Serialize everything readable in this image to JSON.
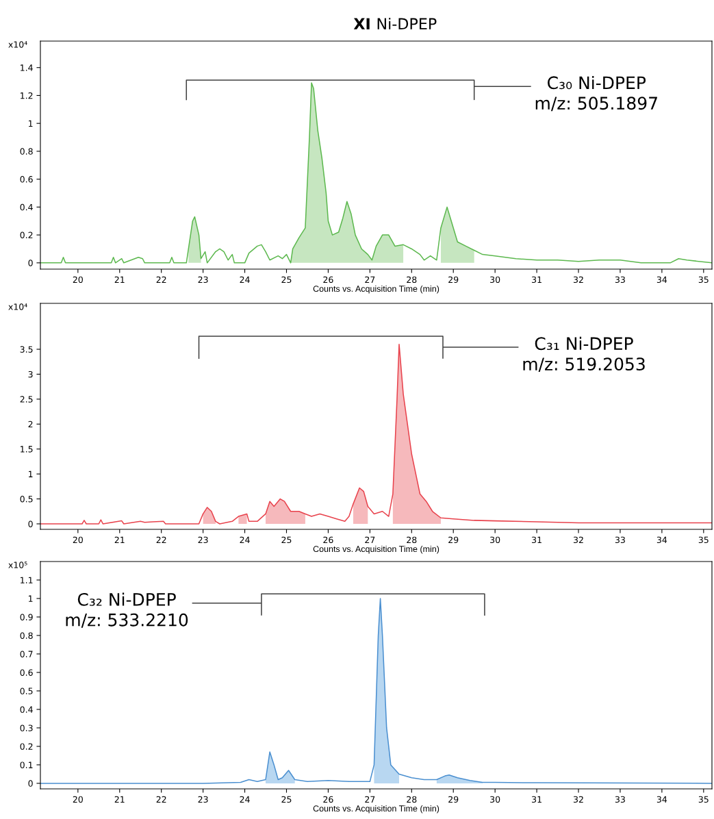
{
  "chart_data": [
    {
      "type": "line",
      "title": "XI Ni-DPEP",
      "xlabel": "Counts vs. Acquisition Time (min)",
      "ylabel": "x10⁴",
      "xlim": [
        19.1,
        35.2
      ],
      "xticks": [
        20,
        21,
        22,
        23,
        24,
        25,
        26,
        27,
        28,
        29,
        30,
        31,
        32,
        33,
        34,
        35
      ],
      "ylim": [
        -0.045,
        1.59
      ],
      "yticks": [
        0,
        0.2,
        0.4,
        0.6,
        0.8,
        1,
        1.2,
        1.4
      ],
      "marker": "none",
      "x": [
        19.1,
        19.6,
        19.65,
        19.7,
        20.8,
        20.85,
        20.9,
        21.05,
        21.1,
        21.45,
        21.55,
        21.6,
        22.2,
        22.25,
        22.3,
        22.6,
        22.65,
        22.75,
        22.8,
        22.9,
        22.95,
        23.05,
        23.1,
        23.3,
        23.4,
        23.5,
        23.6,
        23.7,
        23.75,
        24.0,
        24.1,
        24.3,
        24.4,
        24.5,
        24.6,
        24.8,
        24.9,
        25.0,
        25.1,
        25.15,
        25.3,
        25.45,
        25.55,
        25.6,
        25.65,
        25.75,
        25.85,
        25.95,
        26.0,
        26.1,
        26.25,
        26.35,
        26.45,
        26.55,
        26.65,
        26.8,
        26.95,
        27.05,
        27.15,
        27.3,
        27.45,
        27.6,
        27.8,
        28.0,
        28.2,
        28.3,
        28.45,
        28.6,
        28.7,
        28.85,
        28.95,
        29.1,
        29.3,
        29.5,
        29.7,
        30.0,
        30.5,
        31.0,
        31.5,
        32.0,
        32.5,
        33.0,
        33.5,
        34.2,
        34.4,
        34.6,
        35.2
      ],
      "series": [
        {
          "type": "area",
          "color": "#c6e6c0",
          "values": [
            null,
            null,
            null,
            null,
            null,
            null,
            null,
            null,
            null,
            null,
            null,
            null,
            null,
            null,
            null,
            null,
            0.1,
            0.3,
            0.33,
            0.2,
            0.03,
            null,
            null,
            null,
            null,
            null,
            null,
            null,
            null,
            null,
            null,
            null,
            null,
            null,
            null,
            null,
            null,
            null,
            0.0,
            0.1,
            0.18,
            0.25,
            0.9,
            1.29,
            1.25,
            0.95,
            0.75,
            0.5,
            0.3,
            0.2,
            0.22,
            0.32,
            0.44,
            0.35,
            0.2,
            0.1,
            0.06,
            0.02,
            0.12,
            0.2,
            0.2,
            0.12,
            0.13,
            null,
            null,
            null,
            null,
            null,
            0.25,
            0.4,
            0.3,
            0.15,
            0.12,
            0.09,
            null,
            null,
            null,
            null,
            null,
            null,
            null,
            null,
            null,
            null,
            null,
            null,
            null
          ]
        },
        {
          "color": "#5cb84e",
          "values": [
            0,
            0,
            0.04,
            0,
            0,
            0.04,
            0,
            0.03,
            0,
            0.04,
            0.03,
            0,
            0,
            0.04,
            0,
            0,
            0.1,
            0.3,
            0.33,
            0.2,
            0.03,
            0.08,
            0,
            0.08,
            0.1,
            0.08,
            0.02,
            0.06,
            0,
            0,
            0.07,
            0.12,
            0.13,
            0.08,
            0.02,
            0.05,
            0.03,
            0.06,
            0.0,
            0.1,
            0.18,
            0.25,
            0.9,
            1.29,
            1.25,
            0.95,
            0.75,
            0.5,
            0.3,
            0.2,
            0.22,
            0.32,
            0.44,
            0.35,
            0.2,
            0.1,
            0.06,
            0.02,
            0.12,
            0.2,
            0.2,
            0.12,
            0.13,
            0.1,
            0.06,
            0.02,
            0.05,
            0.02,
            0.25,
            0.4,
            0.3,
            0.15,
            0.12,
            0.09,
            0.06,
            0.05,
            0.03,
            0.02,
            0.02,
            0.01,
            0.02,
            0.02,
            0.0,
            0.0,
            0.03,
            0.02,
            0
          ]
        },
        {
          "color": "#404040",
          "x": [
            22.6,
            22.6,
            29.5,
            29.5,
            29.5,
            30.85
          ],
          "values": [
            1.17,
            1.31,
            1.31,
            1.17,
            1.265,
            1.265
          ]
        }
      ],
      "annotations": [
        "C₃₀ Ni-DPEP\nm/z: 505.1897"
      ]
    },
    {
      "type": "line",
      "xlabel": "Counts vs. Acquisition Time (min)",
      "ylabel": "x10⁴",
      "xlim": [
        19.1,
        35.2
      ],
      "xticks": [
        20,
        21,
        22,
        23,
        24,
        25,
        26,
        27,
        28,
        29,
        30,
        31,
        32,
        33,
        34,
        35
      ],
      "ylim": [
        -0.11,
        4.42
      ],
      "yticks": [
        0,
        0.5,
        1,
        1.5,
        2,
        2.5,
        3,
        3.5
      ],
      "marker": "none",
      "x": [
        19.1,
        20.1,
        20.15,
        20.2,
        20.5,
        20.55,
        20.6,
        21.05,
        21.1,
        21.5,
        21.6,
        21.8,
        22.05,
        22.1,
        22.9,
        23.0,
        23.1,
        23.2,
        23.3,
        23.4,
        23.7,
        23.85,
        24.05,
        24.1,
        24.3,
        24.5,
        24.6,
        24.7,
        24.85,
        24.95,
        25.1,
        25.3,
        25.45,
        25.6,
        25.8,
        26.0,
        26.2,
        26.4,
        26.5,
        26.6,
        26.75,
        26.85,
        26.95,
        27.1,
        27.3,
        27.45,
        27.55,
        27.65,
        27.7,
        27.8,
        27.9,
        28.0,
        28.1,
        28.2,
        28.35,
        28.5,
        28.7,
        29.0,
        29.5,
        30.0,
        31.0,
        32.0,
        33.0,
        34.0,
        35.2
      ],
      "series": [
        {
          "type": "area",
          "color": "#f6b9bc",
          "values": [
            null,
            null,
            null,
            null,
            null,
            null,
            null,
            null,
            null,
            null,
            null,
            null,
            null,
            null,
            null,
            0.2,
            0.33,
            0.25,
            0.05,
            null,
            null,
            0.15,
            0.2,
            null,
            null,
            0.2,
            0.45,
            0.35,
            0.5,
            0.45,
            0.25,
            0.25,
            0.2,
            null,
            null,
            null,
            null,
            null,
            null,
            0.4,
            0.72,
            0.65,
            0.35,
            null,
            null,
            null,
            0.6,
            2.5,
            3.6,
            2.6,
            2.0,
            1.4,
            1.0,
            0.6,
            0.45,
            0.25,
            0.12,
            null,
            null,
            null,
            null,
            null,
            null,
            null,
            null
          ]
        },
        {
          "color": "#e8424c",
          "values": [
            0,
            0,
            0.07,
            0,
            0,
            0.08,
            0,
            0.06,
            0,
            0.05,
            0.03,
            0.04,
            0.05,
            0,
            0,
            0.2,
            0.33,
            0.25,
            0.05,
            0,
            0.05,
            0.15,
            0.2,
            0.05,
            0.05,
            0.2,
            0.45,
            0.35,
            0.5,
            0.45,
            0.25,
            0.25,
            0.2,
            0.15,
            0.2,
            0.15,
            0.1,
            0.05,
            0.15,
            0.4,
            0.72,
            0.65,
            0.35,
            0.2,
            0.25,
            0.15,
            0.6,
            2.5,
            3.6,
            2.6,
            2.0,
            1.4,
            1.0,
            0.6,
            0.45,
            0.25,
            0.12,
            0.1,
            0.07,
            0.06,
            0.04,
            0.02,
            0.02,
            0.02,
            0.02
          ]
        },
        {
          "color": "#404040",
          "x": [
            22.9,
            22.9,
            28.75,
            28.75,
            28.75,
            30.55
          ],
          "values": [
            3.32,
            3.76,
            3.76,
            3.32,
            3.54,
            3.54
          ]
        }
      ],
      "annotations": [
        "C₃₁ Ni-DPEP\nm/z: 519.2053"
      ]
    },
    {
      "type": "line",
      "xlabel": "Counts vs. Acquisition Time (min)",
      "ylabel": "x10⁵",
      "xlim": [
        19.1,
        35.2
      ],
      "xticks": [
        20,
        21,
        22,
        23,
        24,
        25,
        26,
        27,
        28,
        29,
        30,
        31,
        32,
        33,
        34,
        35
      ],
      "ylim": [
        -0.03,
        1.2
      ],
      "yticks": [
        0,
        0.1,
        0.2,
        0.3,
        0.4,
        0.5,
        0.6,
        0.7,
        0.8,
        0.9,
        1,
        1.1
      ],
      "marker": "none",
      "x": [
        19.1,
        23.0,
        23.9,
        24.1,
        24.3,
        24.5,
        24.6,
        24.7,
        24.8,
        24.9,
        25.05,
        25.2,
        25.5,
        26.0,
        26.5,
        27.0,
        27.1,
        27.2,
        27.25,
        27.3,
        27.4,
        27.5,
        27.7,
        28.0,
        28.3,
        28.6,
        28.8,
        28.9,
        29.1,
        29.4,
        29.7,
        30.0,
        31.0,
        35.2
      ],
      "series": [
        {
          "type": "area",
          "color": "#b8d7f1",
          "values": [
            null,
            null,
            null,
            null,
            null,
            0.02,
            0.17,
            0.1,
            0.02,
            0.03,
            0.07,
            0.02,
            null,
            null,
            null,
            null,
            0.1,
            0.8,
            1.0,
            0.8,
            0.3,
            0.1,
            0.05,
            null,
            null,
            0.02,
            0.04,
            0.045,
            0.03,
            0.015,
            0.005,
            null,
            null,
            null
          ]
        },
        {
          "color": "#4a8fd0",
          "values": [
            0,
            0,
            0.005,
            0.02,
            0.01,
            0.02,
            0.17,
            0.1,
            0.02,
            0.03,
            0.07,
            0.02,
            0.01,
            0.015,
            0.01,
            0.01,
            0.1,
            0.8,
            1.0,
            0.8,
            0.3,
            0.1,
            0.05,
            0.03,
            0.02,
            0.02,
            0.04,
            0.045,
            0.03,
            0.015,
            0.005,
            0.005,
            0.003,
            0
          ]
        },
        {
          "color": "#404040",
          "x": [
            29.75,
            29.75,
            24.4,
            24.4,
            24.4,
            22.75
          ],
          "values": [
            0.91,
            1.025,
            1.025,
            0.91,
            0.975,
            0.975
          ]
        }
      ],
      "annotations": [
        "C₃₂ Ni-DPEP\nm/z: 533.2210"
      ]
    }
  ]
}
